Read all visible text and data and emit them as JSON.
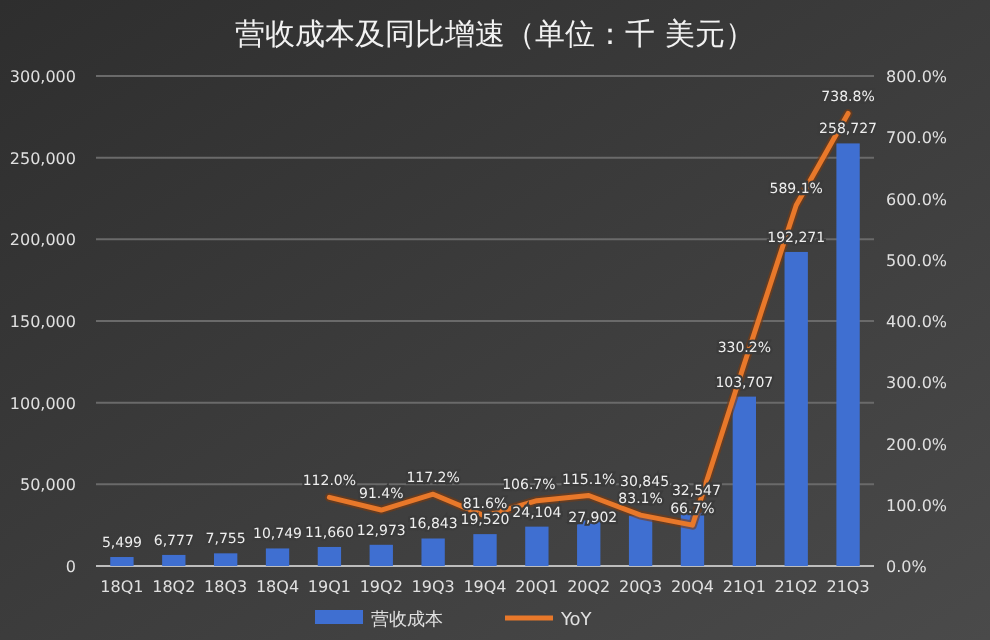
{
  "chart_data": {
    "type": "bar",
    "title": "营收成本及同比增速（单位：千 美元）",
    "categories": [
      "18Q1",
      "18Q2",
      "18Q3",
      "18Q4",
      "19Q1",
      "19Q2",
      "19Q3",
      "19Q4",
      "20Q1",
      "20Q2",
      "20Q3",
      "20Q4",
      "21Q1",
      "21Q2",
      "21Q3"
    ],
    "series": [
      {
        "name": "营收成本",
        "color": "#3f6fd1",
        "values": [
          5499,
          6777,
          7755,
          10749,
          11660,
          12973,
          16843,
          19520,
          24104,
          27902,
          30845,
          32547,
          103707,
          192271,
          258727
        ],
        "value_labels": [
          "5,499",
          "6,777",
          "7,755",
          "10,749",
          "11,660",
          "12,973",
          "16,843",
          "19,520",
          "24,104",
          "27,902",
          "30,845",
          "32,547",
          "103,707",
          "192,271",
          "258,727"
        ]
      },
      {
        "name": "YoY",
        "type": "line",
        "axis": "y2",
        "color": "#e8782a",
        "values": [
          null,
          null,
          null,
          null,
          112.0,
          91.4,
          117.2,
          81.6,
          106.7,
          115.1,
          83.1,
          66.7,
          330.2,
          589.1,
          738.8
        ],
        "value_labels": [
          null,
          null,
          null,
          null,
          "112.0%",
          "91.4%",
          "117.2%",
          "81.6%",
          "106.7%",
          "115.1%",
          "83.1%",
          "66.7%",
          "330.2%",
          "589.1%",
          "738.8%"
        ]
      }
    ],
    "ylim": [
      0,
      300000
    ],
    "yticks": [
      {
        "value": 0,
        "label": "0"
      },
      {
        "value": 50000,
        "label": "50,000"
      },
      {
        "value": 100000,
        "label": "100,000"
      },
      {
        "value": 150000,
        "label": "150,000"
      },
      {
        "value": 200000,
        "label": "200,000"
      },
      {
        "value": 250000,
        "label": "250,000"
      },
      {
        "value": 300000,
        "label": "300,000"
      }
    ],
    "y2lim": [
      0,
      800
    ],
    "y2ticks": [
      {
        "value": 0,
        "label": "0.0%"
      },
      {
        "value": 100,
        "label": "100.0%"
      },
      {
        "value": 200,
        "label": "200.0%"
      },
      {
        "value": 300,
        "label": "300.0%"
      },
      {
        "value": 400,
        "label": "400.0%"
      },
      {
        "value": 500,
        "label": "500.0%"
      },
      {
        "value": 600,
        "label": "600.0%"
      },
      {
        "value": 700,
        "label": "700.0%"
      },
      {
        "value": 800,
        "label": "800.0%"
      }
    ],
    "grid": "y",
    "legend": "bottom"
  }
}
